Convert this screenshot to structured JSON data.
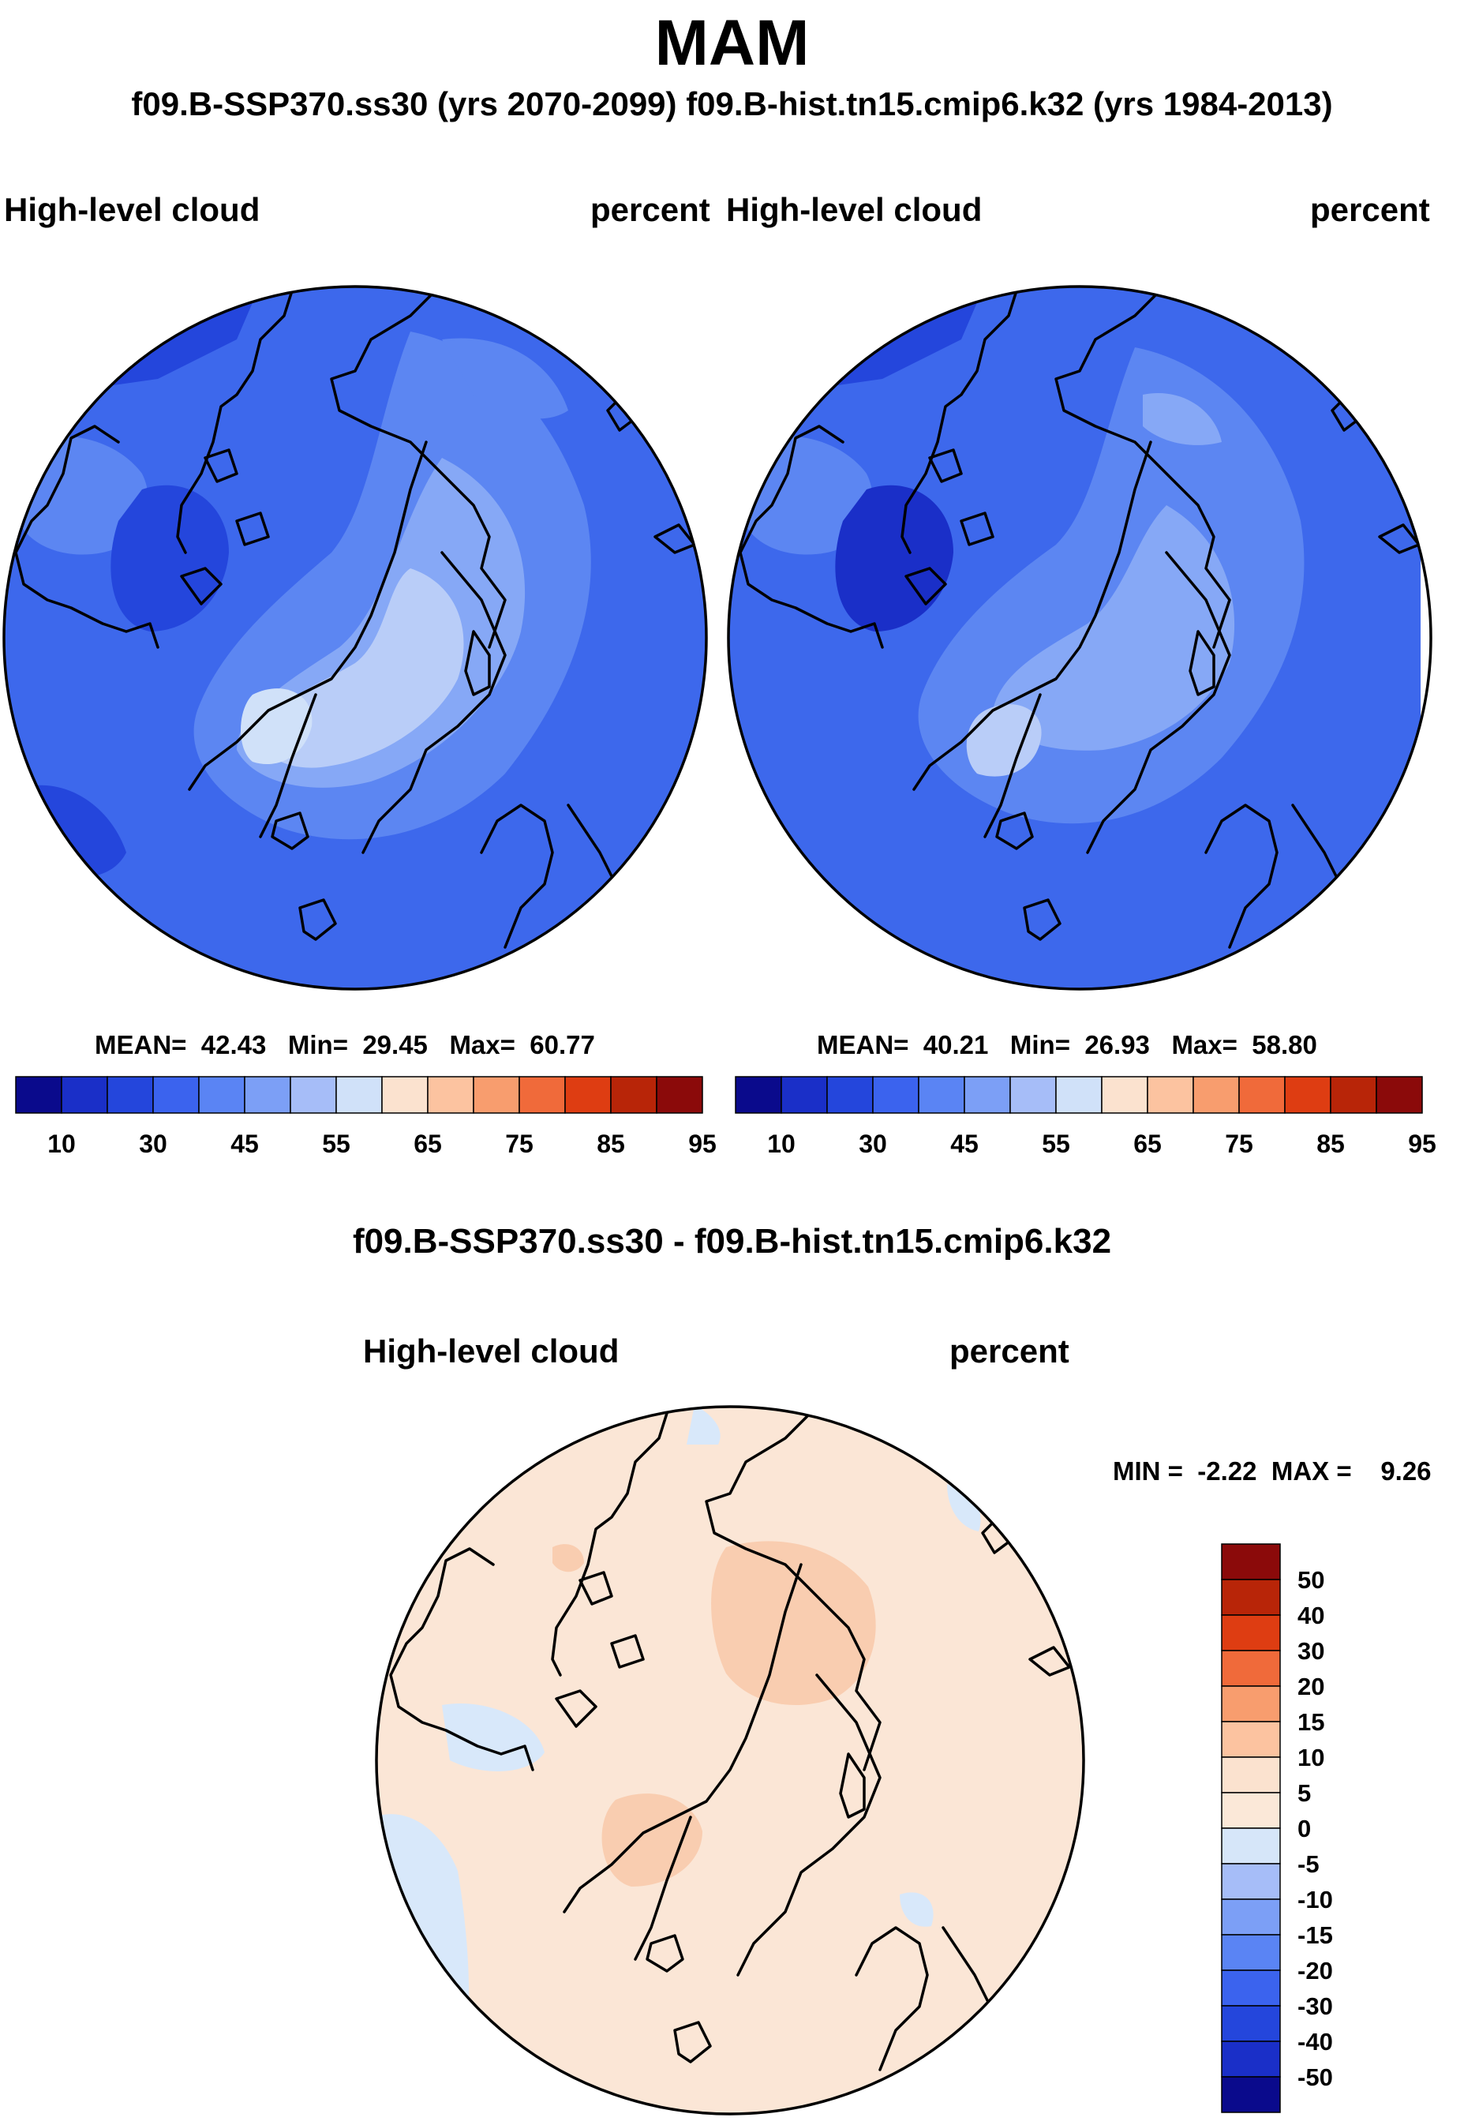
{
  "figure": {
    "season": "MAM",
    "comparison_title": "f09.B-SSP370.ss30 (yrs 2070-2099)  f09.B-hist.tn15.cmip6.k32 (yrs 1984-2013)",
    "difference_title": "f09.B-SSP370.ss30 - f09.B-hist.tn15.cmip6.k32"
  },
  "panels": [
    {
      "id": "ssp370",
      "variable": "High-level cloud",
      "units": "percent",
      "stats": {
        "mean_label": "MEAN=",
        "mean": "42.43",
        "min_label": "Min=",
        "min": "29.45",
        "max_label": "Max=",
        "max": "60.77"
      }
    },
    {
      "id": "historical",
      "variable": "High-level cloud",
      "units": "percent",
      "stats": {
        "mean_label": "MEAN=",
        "mean": "40.21",
        "min_label": "Min=",
        "min": "26.93",
        "max_label": "Max=",
        "max": "58.80"
      }
    },
    {
      "id": "difference",
      "variable": "High-level cloud",
      "units": "percent",
      "stats": {
        "min_label": "MIN =",
        "min": "-2.22",
        "max_label": "MAX =",
        "max": "9.26"
      }
    }
  ],
  "colorbars": {
    "absolute": {
      "orientation": "horizontal",
      "levels": [
        10,
        30,
        45,
        55,
        65,
        75,
        85,
        95
      ],
      "tick_labels": [
        "10",
        "30",
        "45",
        "55",
        "65",
        "75",
        "85",
        "95"
      ],
      "colors": [
        "#0a0a8c",
        "#1a2fc8",
        "#2446dc",
        "#3b63ee",
        "#5a84f4",
        "#7c9ff6",
        "#a6bdf8",
        "#d0e1f9",
        "#fbe2cf",
        "#fcc3a0",
        "#f89d6e",
        "#f06a3a",
        "#de3d12",
        "#b82508",
        "#8b0a0a"
      ]
    },
    "difference": {
      "orientation": "vertical",
      "levels": [
        50,
        40,
        30,
        20,
        15,
        10,
        5,
        0,
        -5,
        -10,
        -15,
        -20,
        -30,
        -40,
        -50
      ],
      "tick_labels": [
        "50",
        "40",
        "30",
        "20",
        "15",
        "10",
        "5",
        "0",
        "-5",
        "-10",
        "-15",
        "-20",
        "-30",
        "-40",
        "-50"
      ],
      "colors": [
        "#8b0a0a",
        "#b82508",
        "#de3d12",
        "#f06a3a",
        "#f89d6e",
        "#fcc3a0",
        "#fbe2cf",
        "#fbe8d8",
        "#d6e6f9",
        "#a6bdf8",
        "#7c9ff6",
        "#5a84f4",
        "#3b63ee",
        "#2446dc",
        "#1a2fc8",
        "#0a0a8c"
      ]
    }
  },
  "colors": {
    "cloud_dark": "#1f3fd6",
    "cloud_base": "#3d68ec",
    "cloud_mid": "#5c86f2",
    "cloud_light": "#86a8f6",
    "cloud_pale": "#b9cdf8",
    "diff_base": "#fbe6d6",
    "diff_pos": "#f9cdb0",
    "diff_neg": "#d8e8fa"
  }
}
